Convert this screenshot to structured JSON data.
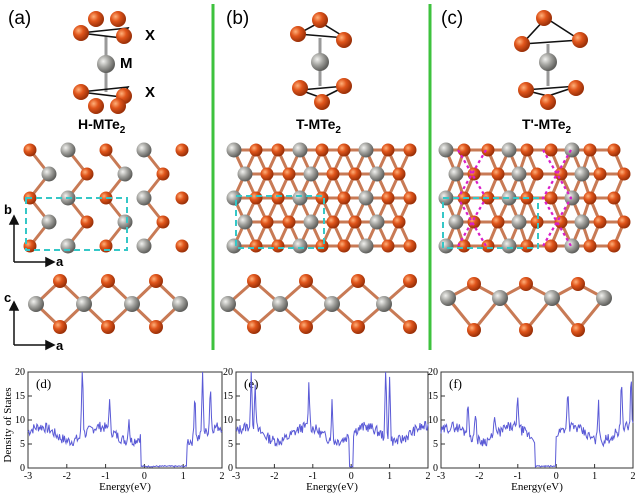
{
  "panels": [
    {
      "label": "(a)",
      "title": "H-MTe",
      "title_sub": "2",
      "x_label": "X",
      "m_label": "M",
      "x_label_bottom": "X"
    },
    {
      "label": "(b)",
      "title": "T-MTe",
      "title_sub": "2"
    },
    {
      "label": "(c)",
      "title": "T'-MTe",
      "title_sub": "2"
    }
  ],
  "axes_top": {
    "b": "b",
    "a": "a"
  },
  "axes_side": {
    "c": "c",
    "a": "a"
  },
  "dos": {
    "ylabel": "Density of States",
    "xlabel": "Energy(eV)",
    "panels": [
      {
        "label": "(d)",
        "xticks": [
          "-3",
          "-2",
          "-1",
          "0",
          "1",
          "2"
        ],
        "yticks": [
          "0",
          "5",
          "10",
          "15",
          "20"
        ]
      },
      {
        "label": "(e)",
        "xticks": [
          "-3",
          "-2",
          "-1",
          "0",
          "1",
          "2"
        ],
        "yticks": [
          "0",
          "5",
          "10",
          "15",
          "20"
        ]
      },
      {
        "label": "(f)",
        "xticks": [
          "-3",
          "-2",
          "-1",
          "0",
          "1",
          "2"
        ],
        "yticks": [
          "0",
          "5",
          "10",
          "15",
          "20"
        ]
      }
    ]
  },
  "colors": {
    "te_atom": "#e0551b",
    "m_atom": "#9a9a96",
    "divider": "#3ec23e",
    "dashed_cell": "#35c7c7",
    "chain": "#d81ec8",
    "dos_line": "#5a5ad6"
  }
}
